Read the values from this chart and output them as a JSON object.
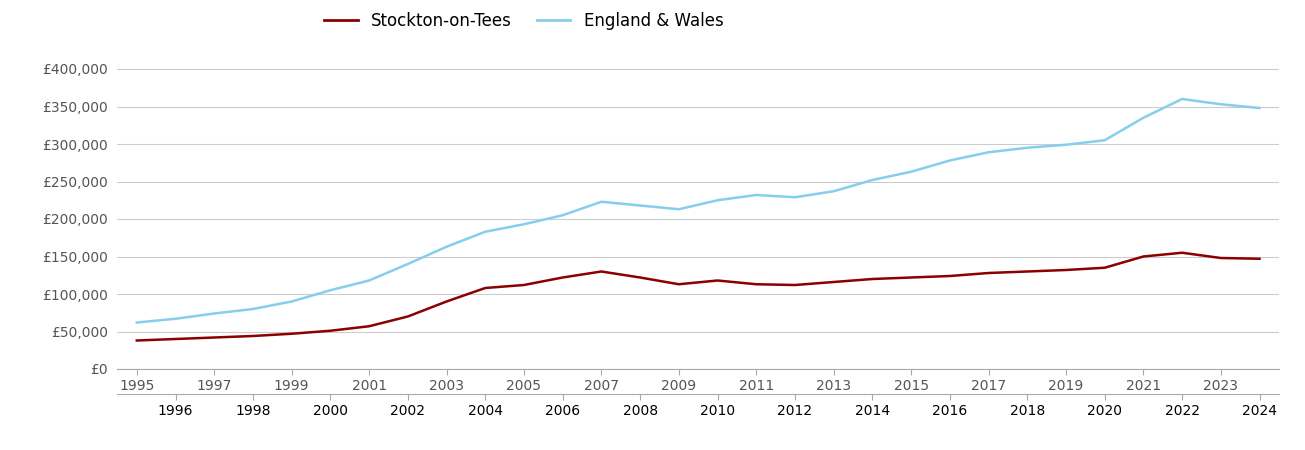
{
  "years": [
    1995,
    1996,
    1997,
    1998,
    1999,
    2000,
    2001,
    2002,
    2003,
    2004,
    2005,
    2006,
    2007,
    2008,
    2009,
    2010,
    2011,
    2012,
    2013,
    2014,
    2015,
    2016,
    2017,
    2018,
    2019,
    2020,
    2021,
    2022,
    2023,
    2024
  ],
  "stockton": [
    38000,
    40000,
    42000,
    44000,
    47000,
    51000,
    57000,
    70000,
    90000,
    108000,
    112000,
    122000,
    130000,
    122000,
    113000,
    118000,
    113000,
    112000,
    116000,
    120000,
    122000,
    124000,
    128000,
    130000,
    132000,
    135000,
    150000,
    155000,
    148000,
    147000
  ],
  "england_wales": [
    62000,
    67000,
    74000,
    80000,
    90000,
    105000,
    118000,
    140000,
    163000,
    183000,
    193000,
    205000,
    223000,
    218000,
    213000,
    225000,
    232000,
    229000,
    237000,
    252000,
    263000,
    278000,
    289000,
    295000,
    299000,
    305000,
    335000,
    360000,
    353000,
    348000
  ],
  "stockton_color": "#8B0000",
  "england_color": "#87CEEB",
  "stockton_label": "Stockton-on-Tees",
  "england_label": "England & Wales",
  "ylim": [
    0,
    420000
  ],
  "yticks": [
    0,
    50000,
    100000,
    150000,
    200000,
    250000,
    300000,
    350000,
    400000
  ],
  "xlim": [
    1994.5,
    2024.5
  ],
  "background_color": "#ffffff",
  "grid_color": "#cccccc",
  "line_width": 1.8,
  "tick_label_color": "#555555",
  "legend_fontsize": 12,
  "tick_fontsize": 10
}
